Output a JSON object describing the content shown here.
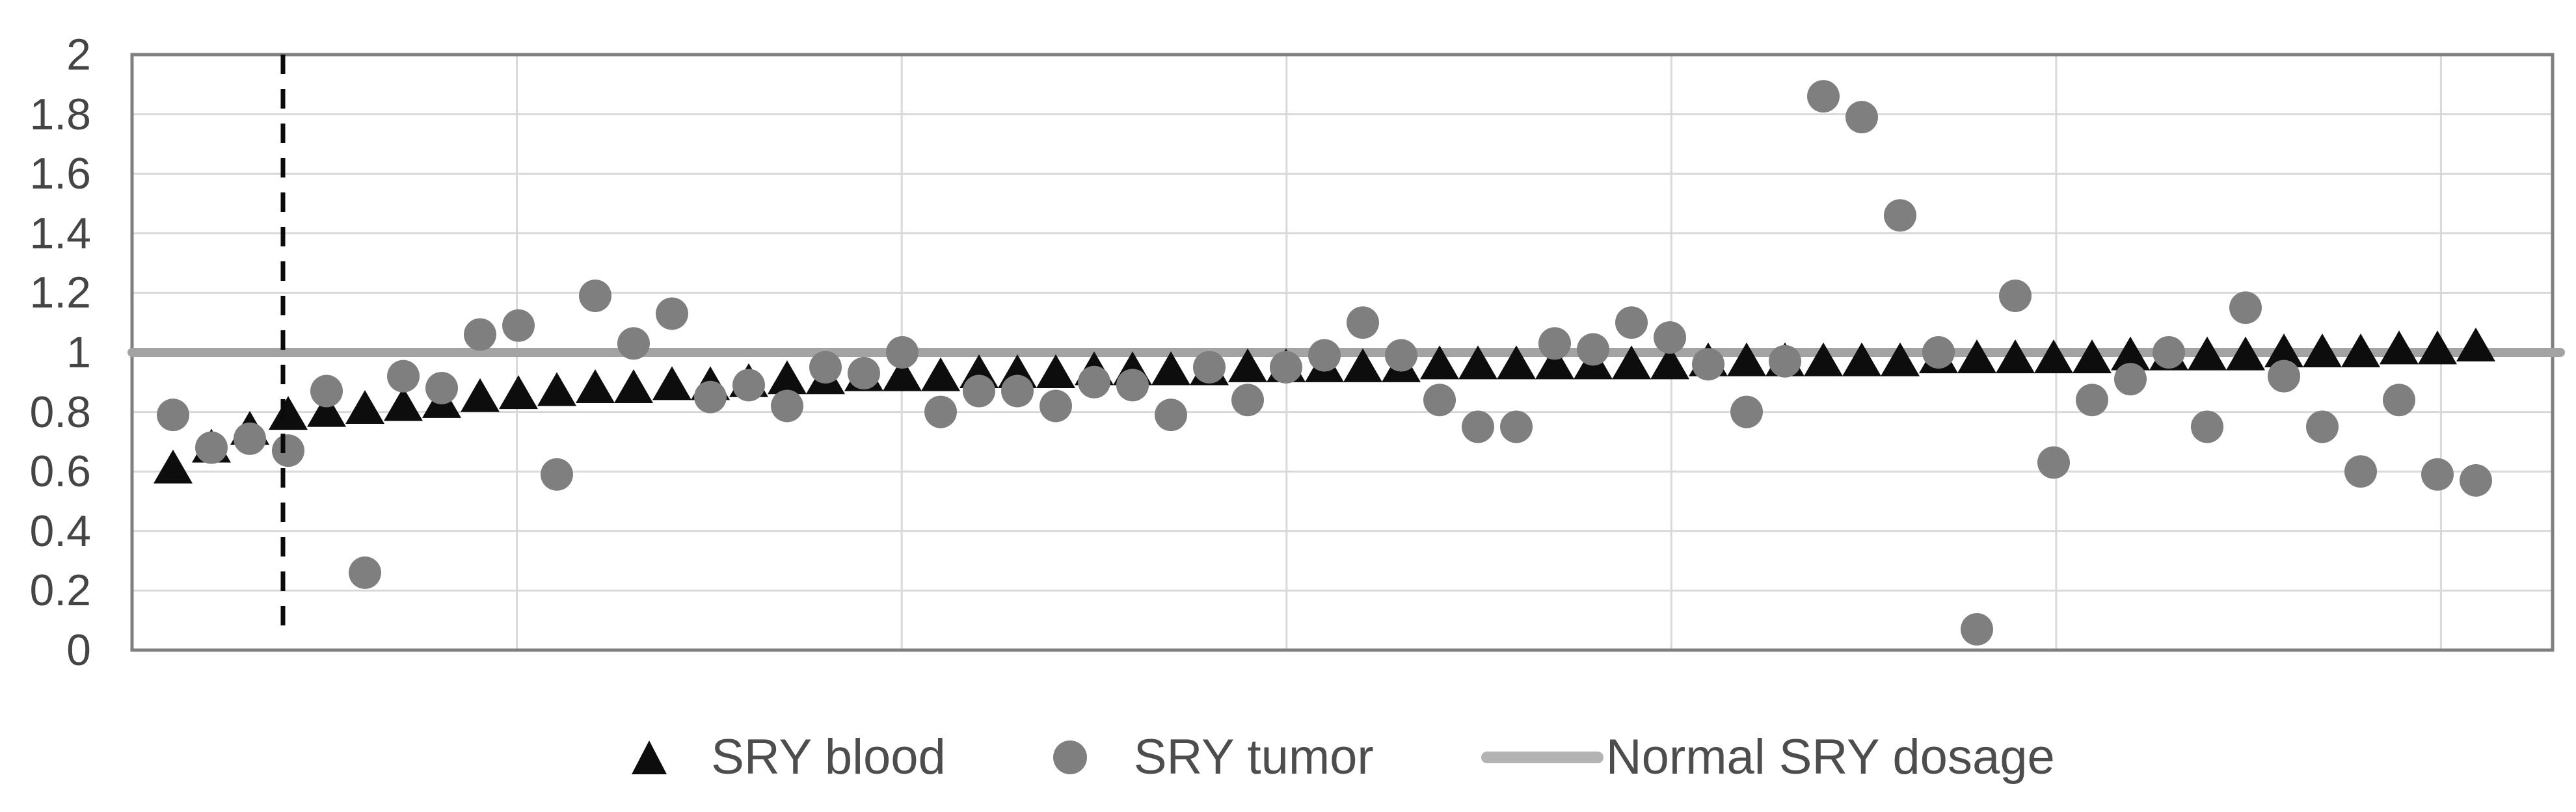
{
  "chart_data": {
    "type": "scatter",
    "title": "",
    "xlabel": "",
    "ylabel": "",
    "ylim": [
      0,
      2
    ],
    "ytick_labels": [
      "0",
      "0.2",
      "0.4",
      "0.6",
      "0.8",
      "1",
      "1.2",
      "1.4",
      "1.6",
      "1.8",
      "2"
    ],
    "ytick_values": [
      0,
      0.2,
      0.4,
      0.6,
      0.8,
      1,
      1.2,
      1.4,
      1.6,
      1.8,
      2
    ],
    "x": "61 unlabeled sample positions",
    "n_points": 61,
    "grid": {
      "horizontal": true,
      "vertical": true,
      "color": "#d9d9d9"
    },
    "legend_position": "bottom",
    "series": [
      {
        "name": "SRY blood",
        "marker": "triangle",
        "color": "#0d0d0d",
        "values": [
          0.61,
          0.68,
          0.74,
          0.79,
          0.8,
          0.81,
          0.82,
          0.83,
          0.85,
          0.86,
          0.87,
          0.88,
          0.88,
          0.89,
          0.89,
          0.9,
          0.91,
          0.91,
          0.92,
          0.92,
          0.92,
          0.93,
          0.93,
          0.93,
          0.94,
          0.94,
          0.94,
          0.94,
          0.95,
          0.95,
          0.95,
          0.95,
          0.95,
          0.96,
          0.96,
          0.96,
          0.96,
          0.96,
          0.96,
          0.96,
          0.97,
          0.97,
          0.97,
          0.97,
          0.97,
          0.97,
          0.98,
          0.98,
          0.98,
          0.98,
          0.98,
          0.99,
          0.99,
          0.99,
          0.99,
          1.0,
          1.0,
          1.0,
          1.01,
          1.01,
          1.02
        ]
      },
      {
        "name": "SRY tumor",
        "marker": "circle",
        "color": "#7f7f7f",
        "values": [
          0.79,
          0.68,
          0.71,
          0.67,
          0.87,
          0.26,
          0.92,
          0.88,
          1.06,
          1.09,
          0.59,
          1.19,
          1.03,
          1.13,
          0.85,
          0.89,
          0.82,
          0.95,
          0.93,
          1.0,
          0.8,
          0.87,
          0.87,
          0.82,
          0.9,
          0.89,
          0.79,
          0.95,
          0.84,
          0.95,
          0.99,
          1.1,
          0.99,
          0.84,
          0.75,
          0.75,
          1.03,
          1.01,
          1.1,
          1.05,
          0.96,
          0.8,
          0.97,
          1.86,
          1.79,
          1.46,
          1.0,
          0.07,
          1.19,
          0.63,
          0.84,
          0.91,
          1.0,
          0.75,
          1.15,
          0.92,
          0.75,
          0.6,
          0.84,
          0.59,
          0.57
        ]
      }
    ],
    "reference_line": {
      "label": "Normal SRY dosage",
      "y": 1.0,
      "color": "#a3a3a3"
    },
    "annotation_lines": [
      {
        "name": "dashed-divider",
        "orientation": "vertical",
        "x_index": 4,
        "y_from": 0.08,
        "y_to": 2.0,
        "style": "dashed",
        "color": "#0a0a0a"
      }
    ]
  }
}
